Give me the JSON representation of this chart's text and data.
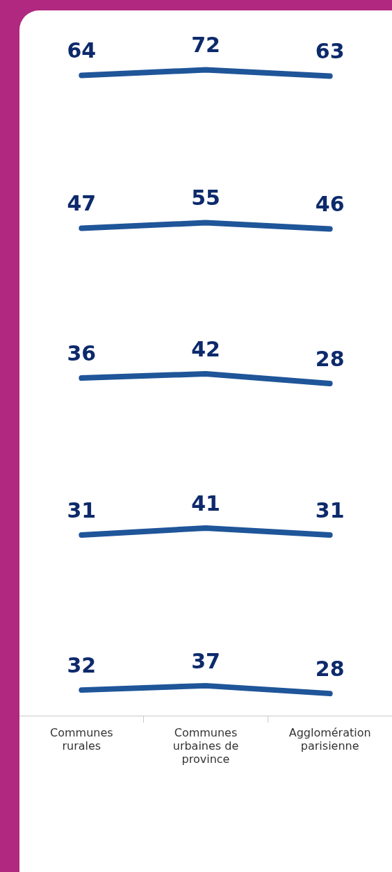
{
  "chart_data": [
    {
      "type": "line",
      "categories": [
        null,
        null,
        null
      ],
      "data_labels": true,
      "tick_labels": false,
      "series": [
        {
          "color": "#1f5599",
          "values": [
            64,
            72,
            63
          ]
        }
      ]
    },
    {
      "type": "line",
      "categories": [
        null,
        null,
        null
      ],
      "data_labels": true,
      "tick_labels": false,
      "series": [
        {
          "color": "#1f5599",
          "values": [
            47,
            55,
            46
          ]
        }
      ]
    },
    {
      "type": "line",
      "categories": [
        null,
        null,
        null
      ],
      "data_labels": true,
      "tick_labels": false,
      "series": [
        {
          "color": "#1f5599",
          "values": [
            36,
            42,
            28
          ]
        }
      ]
    },
    {
      "type": "line",
      "categories": [
        null,
        null,
        null
      ],
      "data_labels": true,
      "tick_labels": false,
      "series": [
        {
          "color": "#1f5599",
          "values": [
            31,
            41,
            31
          ]
        }
      ]
    },
    {
      "type": "line",
      "categories": [
        "Communes rurales",
        "Communes urbaines de province",
        "Agglomération parisienne"
      ],
      "data_labels": true,
      "tick_labels": "x",
      "series": [
        {
          "color": "#1f5599",
          "values": [
            32,
            37,
            28
          ]
        }
      ]
    }
  ]
}
